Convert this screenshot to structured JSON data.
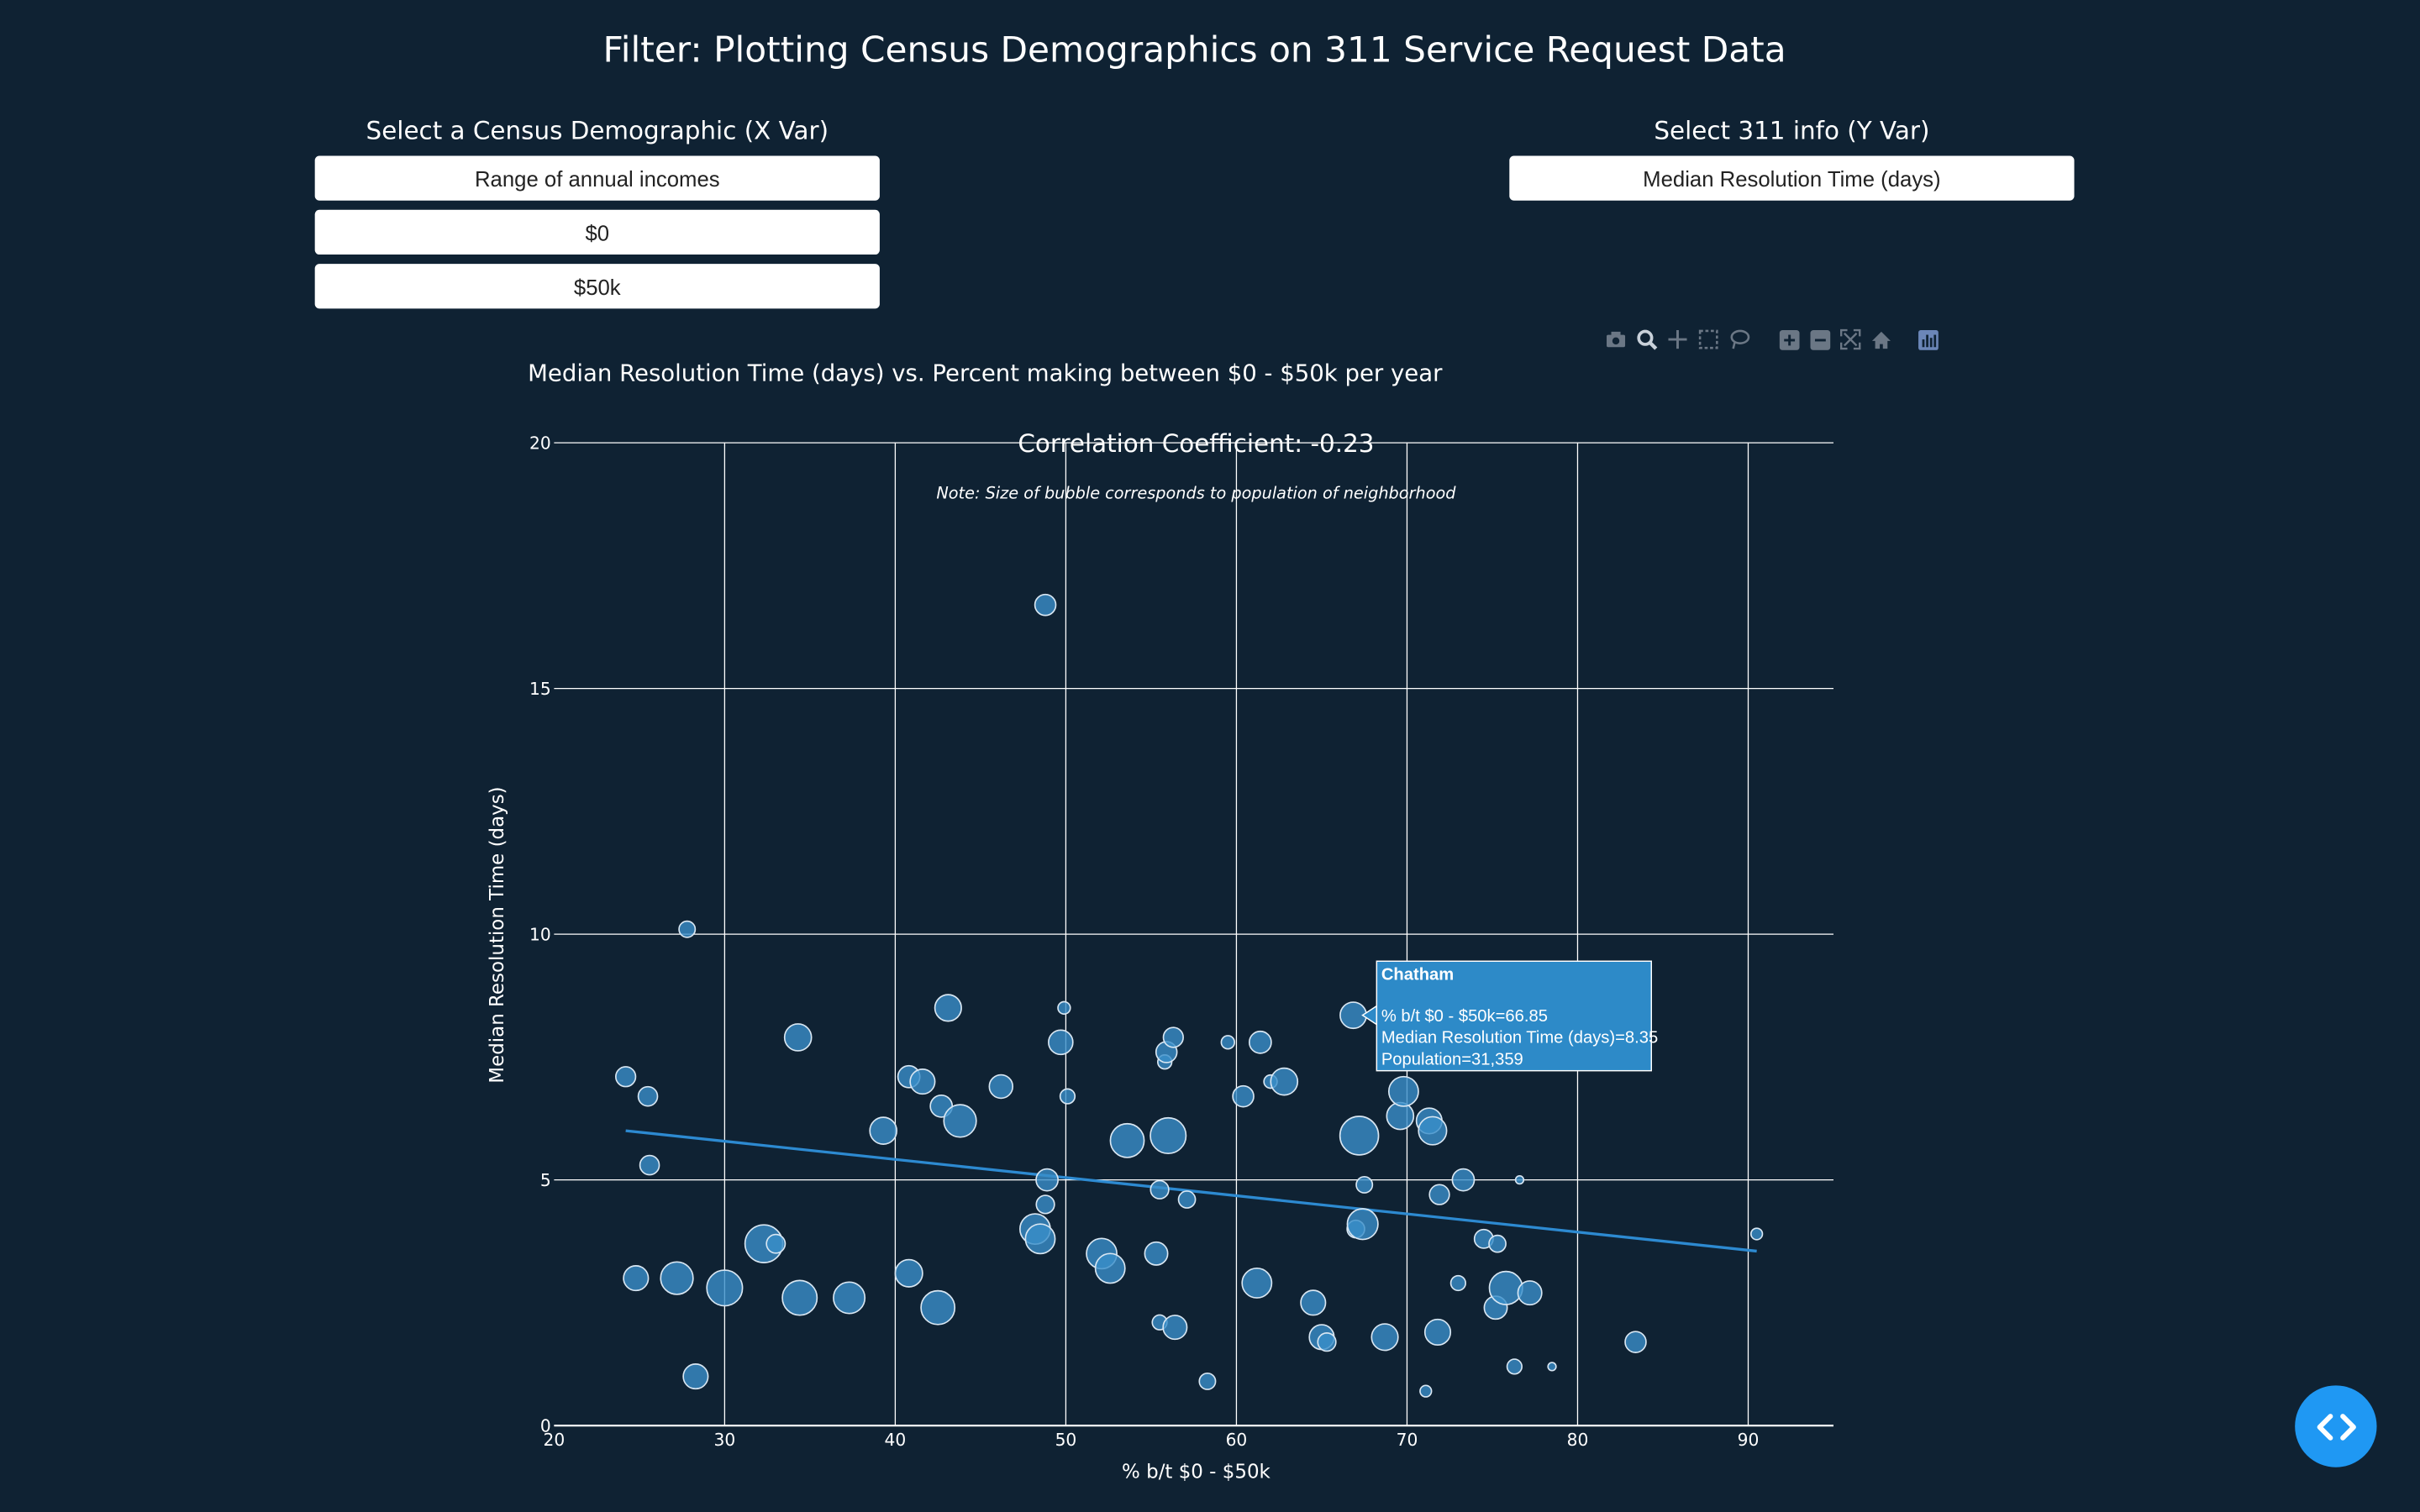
{
  "page": {
    "title": "Filter: Plotting Census Demographics on 311 Service Request Data"
  },
  "controls": {
    "x_label": "Select a Census Demographic (X Var)",
    "x_dropdowns": [
      "Range of annual incomes",
      "$0",
      "$50k"
    ],
    "y_label": "Select 311 info (Y Var)",
    "y_dropdown": "Median Resolution Time (days)"
  },
  "modebar": {
    "icons": [
      "camera-icon",
      "zoom-icon",
      "pan-icon",
      "box-select-icon",
      "lasso-icon",
      "zoom-in-icon",
      "zoom-out-icon",
      "autoscale-icon",
      "home-icon",
      "plotly-logo-icon"
    ]
  },
  "colors": {
    "background": "#0f2233",
    "marker": "#3a8fc9",
    "trendline": "#2d8ad1",
    "tooltip": "#2d8ac8"
  },
  "chart_data": {
    "type": "scatter",
    "title": "Median Resolution Time (days) vs. Percent making between $0 - $50k per year",
    "subtitle": "Correlation Coefficient: -0.23",
    "note": "Note: Size of bubble corresponds to population of neighborhood",
    "xlabel": "% b/t $0 - $50k",
    "ylabel": "Median Resolution Time (days)",
    "xlim": [
      20,
      95
    ],
    "ylim": [
      0,
      20
    ],
    "xticks": [
      20,
      30,
      40,
      50,
      60,
      70,
      80,
      90
    ],
    "yticks": [
      0,
      5,
      10,
      15,
      20
    ],
    "trendline": {
      "x": [
        24.2,
        90.5
      ],
      "y": [
        6.0,
        3.55
      ]
    },
    "points": [
      {
        "x": 48.8,
        "y": 16.7,
        "pop": 20000
      },
      {
        "x": 27.8,
        "y": 10.1,
        "pop": 12000
      },
      {
        "x": 24.2,
        "y": 7.1,
        "pop": 18000
      },
      {
        "x": 25.5,
        "y": 6.7,
        "pop": 17000
      },
      {
        "x": 25.6,
        "y": 5.3,
        "pop": 17000
      },
      {
        "x": 24.8,
        "y": 3.0,
        "pop": 28000
      },
      {
        "x": 27.2,
        "y": 3.0,
        "pop": 48000
      },
      {
        "x": 28.3,
        "y": 1.0,
        "pop": 28000
      },
      {
        "x": 30.0,
        "y": 2.8,
        "pop": 58000
      },
      {
        "x": 32.3,
        "y": 3.7,
        "pop": 65000
      },
      {
        "x": 33.0,
        "y": 3.7,
        "pop": 16000
      },
      {
        "x": 34.3,
        "y": 7.9,
        "pop": 33000
      },
      {
        "x": 34.4,
        "y": 2.6,
        "pop": 55000
      },
      {
        "x": 37.3,
        "y": 2.6,
        "pop": 45000
      },
      {
        "x": 39.3,
        "y": 6.0,
        "pop": 33000
      },
      {
        "x": 40.8,
        "y": 7.1,
        "pop": 22000
      },
      {
        "x": 40.8,
        "y": 3.1,
        "pop": 34000
      },
      {
        "x": 41.6,
        "y": 7.0,
        "pop": 28000
      },
      {
        "x": 42.5,
        "y": 2.4,
        "pop": 52000
      },
      {
        "x": 42.7,
        "y": 6.5,
        "pop": 22000
      },
      {
        "x": 43.1,
        "y": 8.5,
        "pop": 32000
      },
      {
        "x": 43.8,
        "y": 6.2,
        "pop": 48000
      },
      {
        "x": 46.2,
        "y": 6.9,
        "pop": 25000
      },
      {
        "x": 48.2,
        "y": 4.0,
        "pop": 42000
      },
      {
        "x": 48.5,
        "y": 3.8,
        "pop": 40000
      },
      {
        "x": 48.9,
        "y": 5.0,
        "pop": 22000
      },
      {
        "x": 48.8,
        "y": 4.5,
        "pop": 15000
      },
      {
        "x": 49.7,
        "y": 7.8,
        "pop": 27000
      },
      {
        "x": 49.9,
        "y": 8.5,
        "pop": 7000
      },
      {
        "x": 50.1,
        "y": 6.7,
        "pop": 10000
      },
      {
        "x": 52.1,
        "y": 3.5,
        "pop": 42000
      },
      {
        "x": 52.6,
        "y": 3.2,
        "pop": 40000
      },
      {
        "x": 53.6,
        "y": 5.8,
        "pop": 52000
      },
      {
        "x": 55.3,
        "y": 3.5,
        "pop": 24000
      },
      {
        "x": 55.5,
        "y": 4.8,
        "pop": 15000
      },
      {
        "x": 55.5,
        "y": 2.1,
        "pop": 10000
      },
      {
        "x": 55.8,
        "y": 7.4,
        "pop": 9000
      },
      {
        "x": 55.9,
        "y": 7.6,
        "pop": 20000
      },
      {
        "x": 56.0,
        "y": 5.9,
        "pop": 58000
      },
      {
        "x": 56.3,
        "y": 7.9,
        "pop": 18000
      },
      {
        "x": 56.4,
        "y": 2.0,
        "pop": 26000
      },
      {
        "x": 57.1,
        "y": 4.6,
        "pop": 13000
      },
      {
        "x": 58.3,
        "y": 0.9,
        "pop": 12000
      },
      {
        "x": 59.5,
        "y": 7.8,
        "pop": 8000
      },
      {
        "x": 60.4,
        "y": 6.7,
        "pop": 20000
      },
      {
        "x": 61.2,
        "y": 2.9,
        "pop": 40000
      },
      {
        "x": 61.4,
        "y": 7.8,
        "pop": 22000
      },
      {
        "x": 62.0,
        "y": 7.0,
        "pop": 8000
      },
      {
        "x": 62.8,
        "y": 7.0,
        "pop": 33000
      },
      {
        "x": 64.5,
        "y": 2.5,
        "pop": 28000
      },
      {
        "x": 65.0,
        "y": 1.8,
        "pop": 28000
      },
      {
        "x": 65.3,
        "y": 1.7,
        "pop": 15000
      },
      {
        "x": 66.85,
        "y": 8.35,
        "pop": 31359
      },
      {
        "x": 67.0,
        "y": 4.0,
        "pop": 14000
      },
      {
        "x": 67.2,
        "y": 5.9,
        "pop": 68000
      },
      {
        "x": 67.4,
        "y": 4.1,
        "pop": 43000
      },
      {
        "x": 67.5,
        "y": 4.9,
        "pop": 12000
      },
      {
        "x": 68.7,
        "y": 1.8,
        "pop": 32000
      },
      {
        "x": 69.6,
        "y": 6.3,
        "pop": 33000
      },
      {
        "x": 69.8,
        "y": 6.8,
        "pop": 40000
      },
      {
        "x": 71.1,
        "y": 0.7,
        "pop": 6000
      },
      {
        "x": 71.3,
        "y": 6.2,
        "pop": 30000
      },
      {
        "x": 71.5,
        "y": 6.0,
        "pop": 36000
      },
      {
        "x": 71.8,
        "y": 1.9,
        "pop": 30000
      },
      {
        "x": 71.9,
        "y": 4.7,
        "pop": 18000
      },
      {
        "x": 73.0,
        "y": 2.9,
        "pop": 10000
      },
      {
        "x": 73.3,
        "y": 5.0,
        "pop": 22000
      },
      {
        "x": 74.5,
        "y": 3.8,
        "pop": 16000
      },
      {
        "x": 75.2,
        "y": 2.4,
        "pop": 24000
      },
      {
        "x": 75.3,
        "y": 3.7,
        "pop": 13000
      },
      {
        "x": 75.8,
        "y": 2.8,
        "pop": 50000
      },
      {
        "x": 76.3,
        "y": 1.2,
        "pop": 10000
      },
      {
        "x": 76.6,
        "y": 5.0,
        "pop": 3000
      },
      {
        "x": 77.2,
        "y": 2.7,
        "pop": 26000
      },
      {
        "x": 78.5,
        "y": 1.2,
        "pop": 3000
      },
      {
        "x": 83.4,
        "y": 1.7,
        "pop": 20000
      },
      {
        "x": 90.5,
        "y": 3.9,
        "pop": 6000
      }
    ],
    "hover": {
      "name": "Chatham",
      "line1": "% b/t $0 - $50k=66.85",
      "line2": "Median Resolution Time (days)=8.35",
      "line3": "Population=31,359"
    }
  }
}
